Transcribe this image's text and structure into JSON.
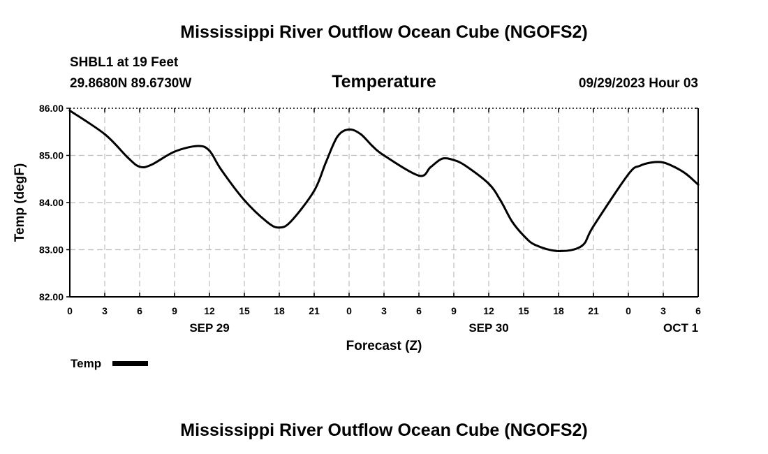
{
  "page": {
    "main_title": "Mississippi River Outflow Ocean Cube (NGOFS2)",
    "footer_title": "Mississippi River Outflow Ocean Cube (NGOFS2)"
  },
  "header": {
    "station": "SHBL1 at 19 Feet",
    "coords": "29.8680N  89.6730W",
    "date": "09/29/2023 Hour 03"
  },
  "legend": {
    "label": "Temp"
  },
  "chart_data": {
    "type": "line",
    "title": "Temperature",
    "xlabel": "Forecast (Z)",
    "ylabel": "Temp (degF)",
    "ylim": [
      82.0,
      86.0
    ],
    "xlim": [
      0,
      54
    ],
    "yticks": [
      82.0,
      83.0,
      84.0,
      85.0,
      86.0
    ],
    "ytick_labels": [
      "82.00",
      "83.00",
      "84.00",
      "85.00",
      "86.00"
    ],
    "xticks": [
      0,
      3,
      6,
      9,
      12,
      15,
      18,
      21,
      24,
      27,
      30,
      33,
      36,
      39,
      42,
      45,
      48,
      51,
      54
    ],
    "xtick_labels": [
      "0",
      "3",
      "6",
      "9",
      "12",
      "15",
      "18",
      "21",
      "0",
      "3",
      "6",
      "9",
      "12",
      "15",
      "18",
      "21",
      "0",
      "3",
      "6"
    ],
    "day_labels": [
      {
        "label": "SEP 29",
        "hour": 12
      },
      {
        "label": "SEP 30",
        "hour": 36
      },
      {
        "label": "OCT 1",
        "hour": 52.5
      }
    ],
    "grid": true,
    "series": [
      {
        "name": "Temp",
        "color": "#000000",
        "x": [
          0,
          3,
          5,
          6,
          7,
          9,
          11,
          12,
          13,
          15,
          17,
          18,
          19,
          21,
          22,
          23,
          24,
          25,
          26,
          27,
          30,
          31,
          32,
          33,
          34,
          36,
          37,
          38,
          39,
          40,
          42,
          44,
          45,
          48,
          49,
          50,
          51,
          52,
          53,
          54
        ],
        "values": [
          85.95,
          85.45,
          84.95,
          84.76,
          84.8,
          85.08,
          85.2,
          85.1,
          84.7,
          84.05,
          83.58,
          83.47,
          83.6,
          84.25,
          84.85,
          85.4,
          85.55,
          85.45,
          85.2,
          85.0,
          84.57,
          84.75,
          84.93,
          84.9,
          84.78,
          84.4,
          84.05,
          83.6,
          83.3,
          83.1,
          82.97,
          83.08,
          83.5,
          84.6,
          84.78,
          84.85,
          84.85,
          84.75,
          84.6,
          84.38
        ]
      }
    ]
  }
}
